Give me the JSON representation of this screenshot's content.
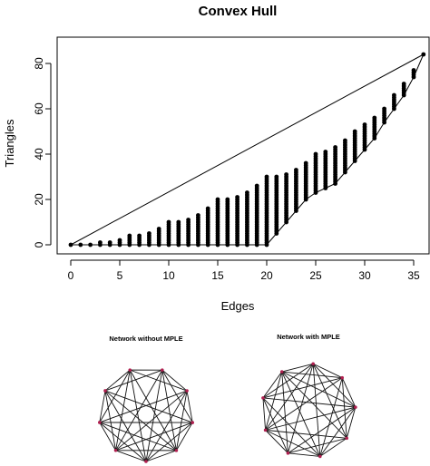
{
  "chart_data": [
    {
      "type": "scatter",
      "title": "Convex Hull",
      "xlabel": "Edges",
      "ylabel": "Triangles",
      "xlim": [
        0,
        36
      ],
      "ylim": [
        0,
        84
      ],
      "x_ticks": [
        0,
        5,
        10,
        15,
        20,
        25,
        30,
        35
      ],
      "y_ticks": [
        0,
        20,
        40,
        60,
        80
      ],
      "grid": false,
      "points_description": "For each edge count from 0 to 36 a vertical column of achievable triangle counts between the lower hull and the upper envelope",
      "upper_envelope": [
        [
          0,
          0
        ],
        [
          1,
          0
        ],
        [
          2,
          0
        ],
        [
          3,
          1
        ],
        [
          4,
          1
        ],
        [
          5,
          2
        ],
        [
          6,
          4
        ],
        [
          7,
          4
        ],
        [
          8,
          5
        ],
        [
          9,
          7
        ],
        [
          10,
          10
        ],
        [
          11,
          10
        ],
        [
          12,
          11
        ],
        [
          13,
          13
        ],
        [
          14,
          16
        ],
        [
          15,
          20
        ],
        [
          16,
          20
        ],
        [
          17,
          21
        ],
        [
          18,
          23
        ],
        [
          19,
          26
        ],
        [
          20,
          30
        ],
        [
          21,
          30
        ],
        [
          22,
          31
        ],
        [
          23,
          33
        ],
        [
          24,
          36
        ],
        [
          25,
          40
        ],
        [
          26,
          41
        ],
        [
          27,
          43
        ],
        [
          28,
          46
        ],
        [
          29,
          50
        ],
        [
          30,
          53
        ],
        [
          31,
          56
        ],
        [
          32,
          60
        ],
        [
          33,
          66
        ],
        [
          34,
          71
        ],
        [
          35,
          77
        ],
        [
          36,
          84
        ]
      ],
      "lower_hull": [
        [
          0,
          0
        ],
        [
          20,
          0
        ],
        [
          21,
          5
        ],
        [
          22,
          10
        ],
        [
          23,
          15
        ],
        [
          24,
          20
        ],
        [
          25,
          23
        ],
        [
          26,
          25
        ],
        [
          27,
          27
        ],
        [
          28,
          32
        ],
        [
          29,
          37
        ],
        [
          30,
          42
        ],
        [
          31,
          47
        ],
        [
          32,
          54
        ],
        [
          33,
          60
        ],
        [
          34,
          66
        ],
        [
          35,
          74
        ],
        [
          36,
          84
        ]
      ],
      "upper_hull": [
        [
          0,
          0
        ],
        [
          36,
          84
        ]
      ]
    },
    {
      "type": "network",
      "title": "Network without MPLE",
      "node_count": 9,
      "node_color": "#b02050"
    },
    {
      "type": "network",
      "title": "Network with MPLE",
      "node_count": 9,
      "node_color": "#b02050"
    }
  ]
}
